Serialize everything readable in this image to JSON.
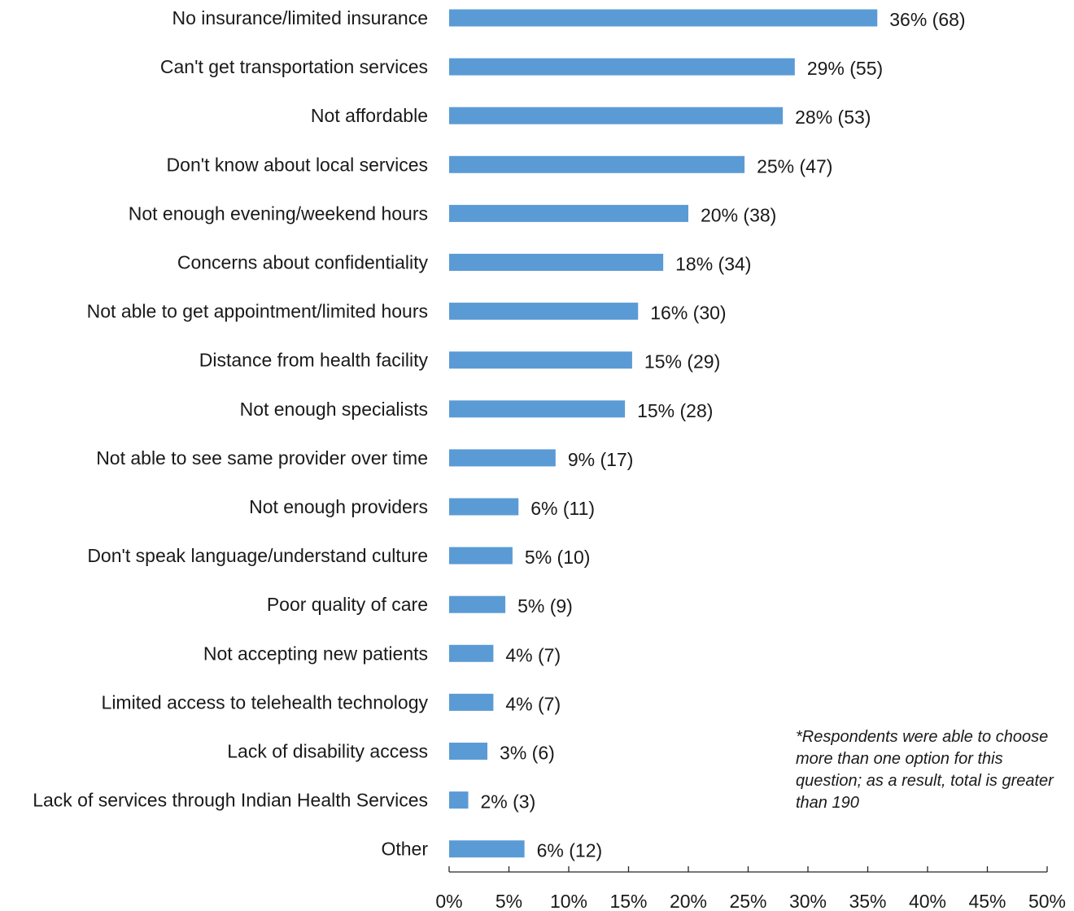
{
  "chart_data": {
    "type": "bar",
    "orientation": "horizontal",
    "categories": [
      "No insurance/limited insurance",
      "Can't get transportation services",
      "Not affordable",
      "Don't know about local services",
      "Not enough evening/weekend hours",
      "Concerns about confidentiality",
      "Not able to get appointment/limited hours",
      "Distance from health facility",
      "Not enough specialists",
      "Not able to see same provider over time",
      "Not enough providers",
      "Don't speak language/understand culture",
      "Poor quality of care",
      "Not accepting new patients",
      "Limited access to telehealth technology",
      "Lack of disability access",
      "Lack of services through Indian Health Services",
      "Other"
    ],
    "values": [
      36,
      29,
      28,
      25,
      20,
      18,
      16,
      15,
      15,
      9,
      6,
      5,
      5,
      4,
      4,
      3,
      2,
      6
    ],
    "bar_lengths": [
      35.8,
      28.9,
      27.9,
      24.7,
      20.0,
      17.9,
      15.8,
      15.3,
      14.7,
      8.9,
      5.8,
      5.3,
      4.7,
      3.7,
      3.7,
      3.2,
      1.6,
      6.3
    ],
    "data_labels": [
      "36% (68)",
      "29% (55)",
      "28% (53)",
      "25% (47)",
      "20% (38)",
      "18% (34)",
      "16% (30)",
      "15% (29)",
      "15% (28)",
      "9% (17)",
      "6% (11)",
      "5% (10)",
      "5% (9)",
      "4% (7)",
      "4% (7)",
      "3% (6)",
      "2% (3)",
      "6% (12)"
    ],
    "xlim": [
      0,
      50
    ],
    "xticks": [
      "0%",
      "5%",
      "10%",
      "15%",
      "20%",
      "25%",
      "30%",
      "35%",
      "40%",
      "45%",
      "50%"
    ],
    "grid": false,
    "bar_color": "#5b9bd5",
    "note": "*Respondents were able to choose more than one option for this question; as a result, total is greater than 190"
  }
}
